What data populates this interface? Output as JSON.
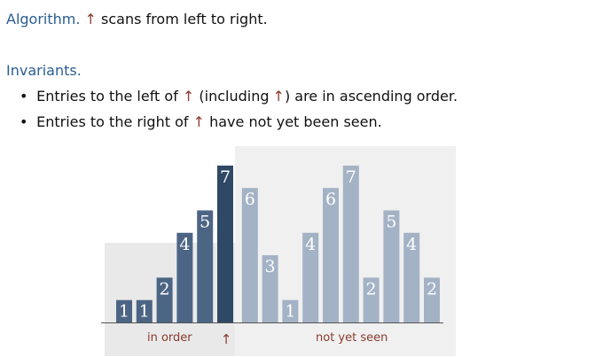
{
  "algorithm": {
    "term": "Algorithm.",
    "arrow": "↑",
    "text": "scans from left to right."
  },
  "invariants": {
    "heading": "Invariants.",
    "bullet1": {
      "pre": "Entries to the left of",
      "arrow": "↑",
      "mid": "(including",
      "arrow2": "↑",
      "post": ") are in ascending order."
    },
    "bullet2": {
      "pre": "Entries to the right of",
      "arrow": "↑",
      "post": "have not yet been seen."
    }
  },
  "figure": {
    "values": [
      1,
      1,
      2,
      4,
      5,
      7,
      6,
      3,
      1,
      4,
      6,
      7,
      2,
      5,
      4,
      2
    ],
    "pointer_index": 5,
    "caption_left": "in order",
    "caption_right": "not yet seen",
    "caption_arrow": "↑",
    "colors": {
      "sorted_bar": "#4d6585",
      "pointer_bar": "#2f4866",
      "unseen_bar": "#a3b2c5",
      "sorted_bg": "#e9e9e9",
      "unseen_bg": "#f0f0f0",
      "baseline": "#555555"
    }
  }
}
